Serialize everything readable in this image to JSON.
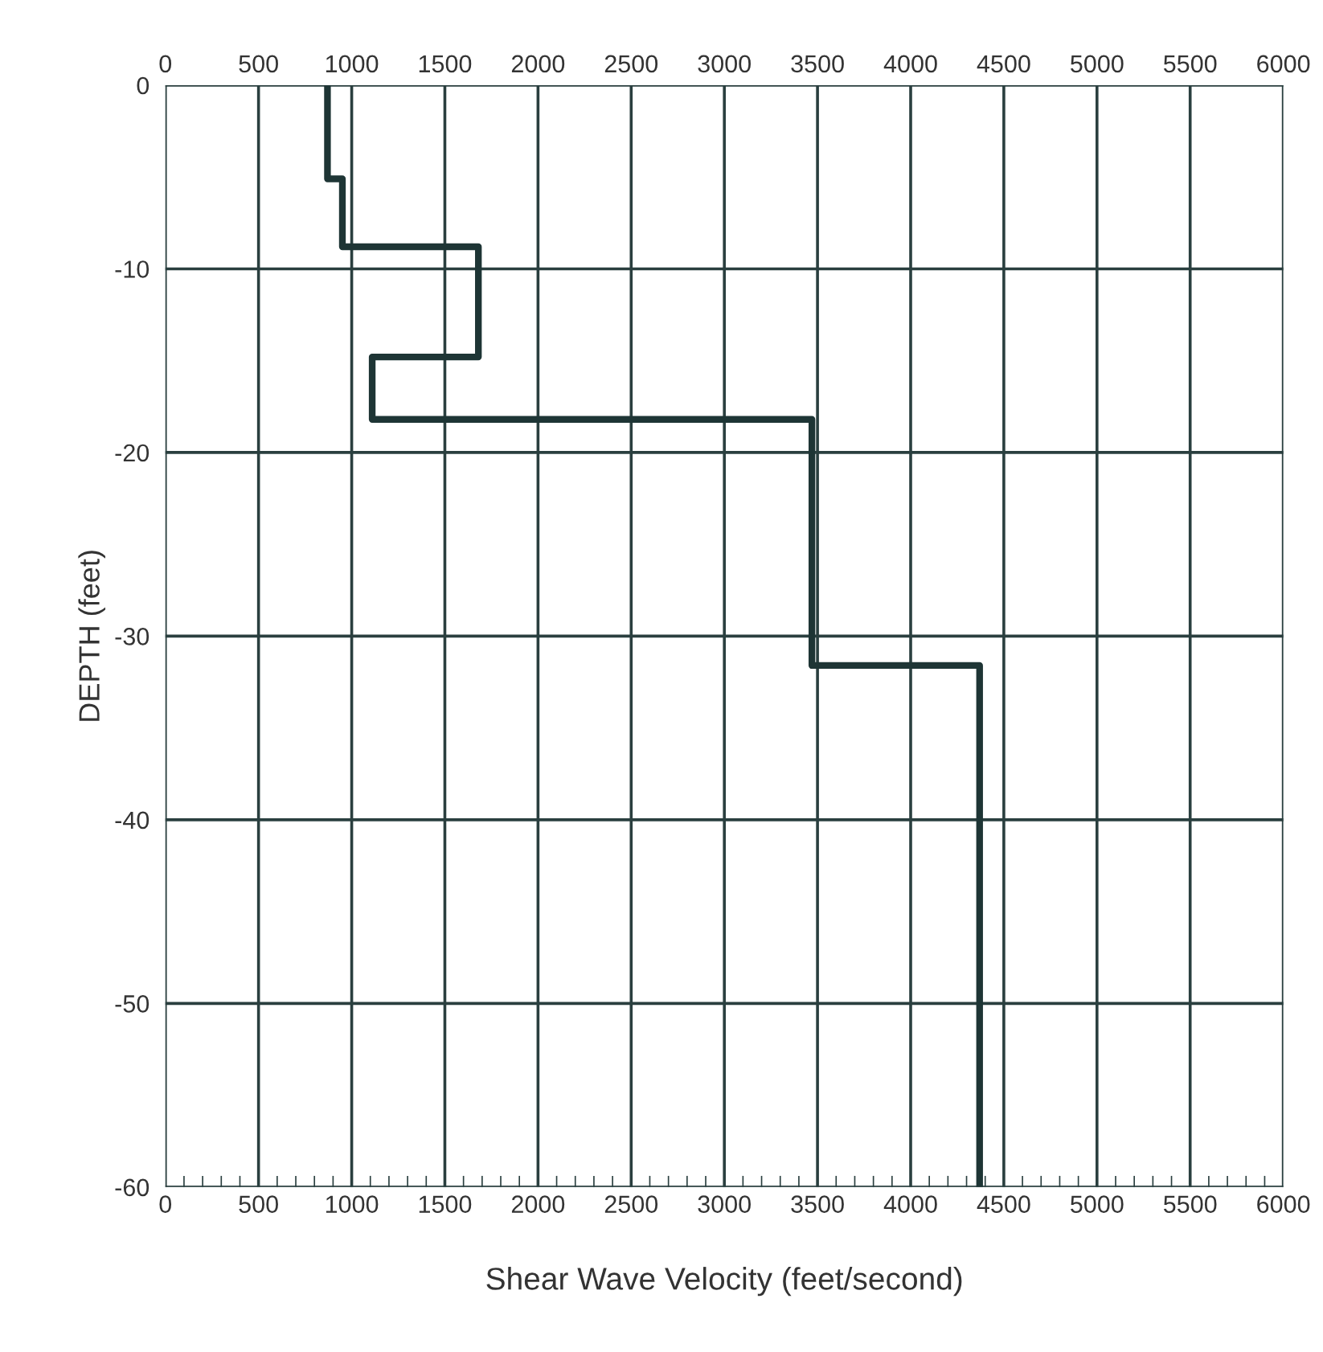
{
  "chart_data": {
    "type": "line",
    "xlabel": "Shear Wave Velocity (feet/second)",
    "ylabel": "DEPTH (feet)",
    "x": [
      870,
      870,
      950,
      950,
      1680,
      1680,
      1110,
      1110,
      3470,
      3470,
      4370,
      4370
    ],
    "series": [
      {
        "color": "#1e3535",
        "values": [
          0,
          -5.1,
          -5.1,
          -8.8,
          -8.8,
          -14.8,
          -14.8,
          -18.2,
          -18.2,
          -31.6,
          -31.6,
          -60
        ]
      }
    ],
    "xlim": [
      0,
      6000
    ],
    "xticks": [
      0,
      500,
      1000,
      1500,
      2000,
      2500,
      3000,
      3500,
      4000,
      4500,
      5000,
      5500,
      6000
    ],
    "x2lim": [
      0,
      6000
    ],
    "x2ticks": [
      0,
      500,
      1000,
      1500,
      2000,
      2500,
      3000,
      3500,
      4000,
      4500,
      5000,
      5500,
      6000
    ],
    "ylim": [
      -60,
      0
    ],
    "yticks": [
      0,
      -10,
      -20,
      -30,
      -40,
      -50,
      -60
    ],
    "grid": true,
    "marker": "none",
    "line_style": "solid"
  }
}
